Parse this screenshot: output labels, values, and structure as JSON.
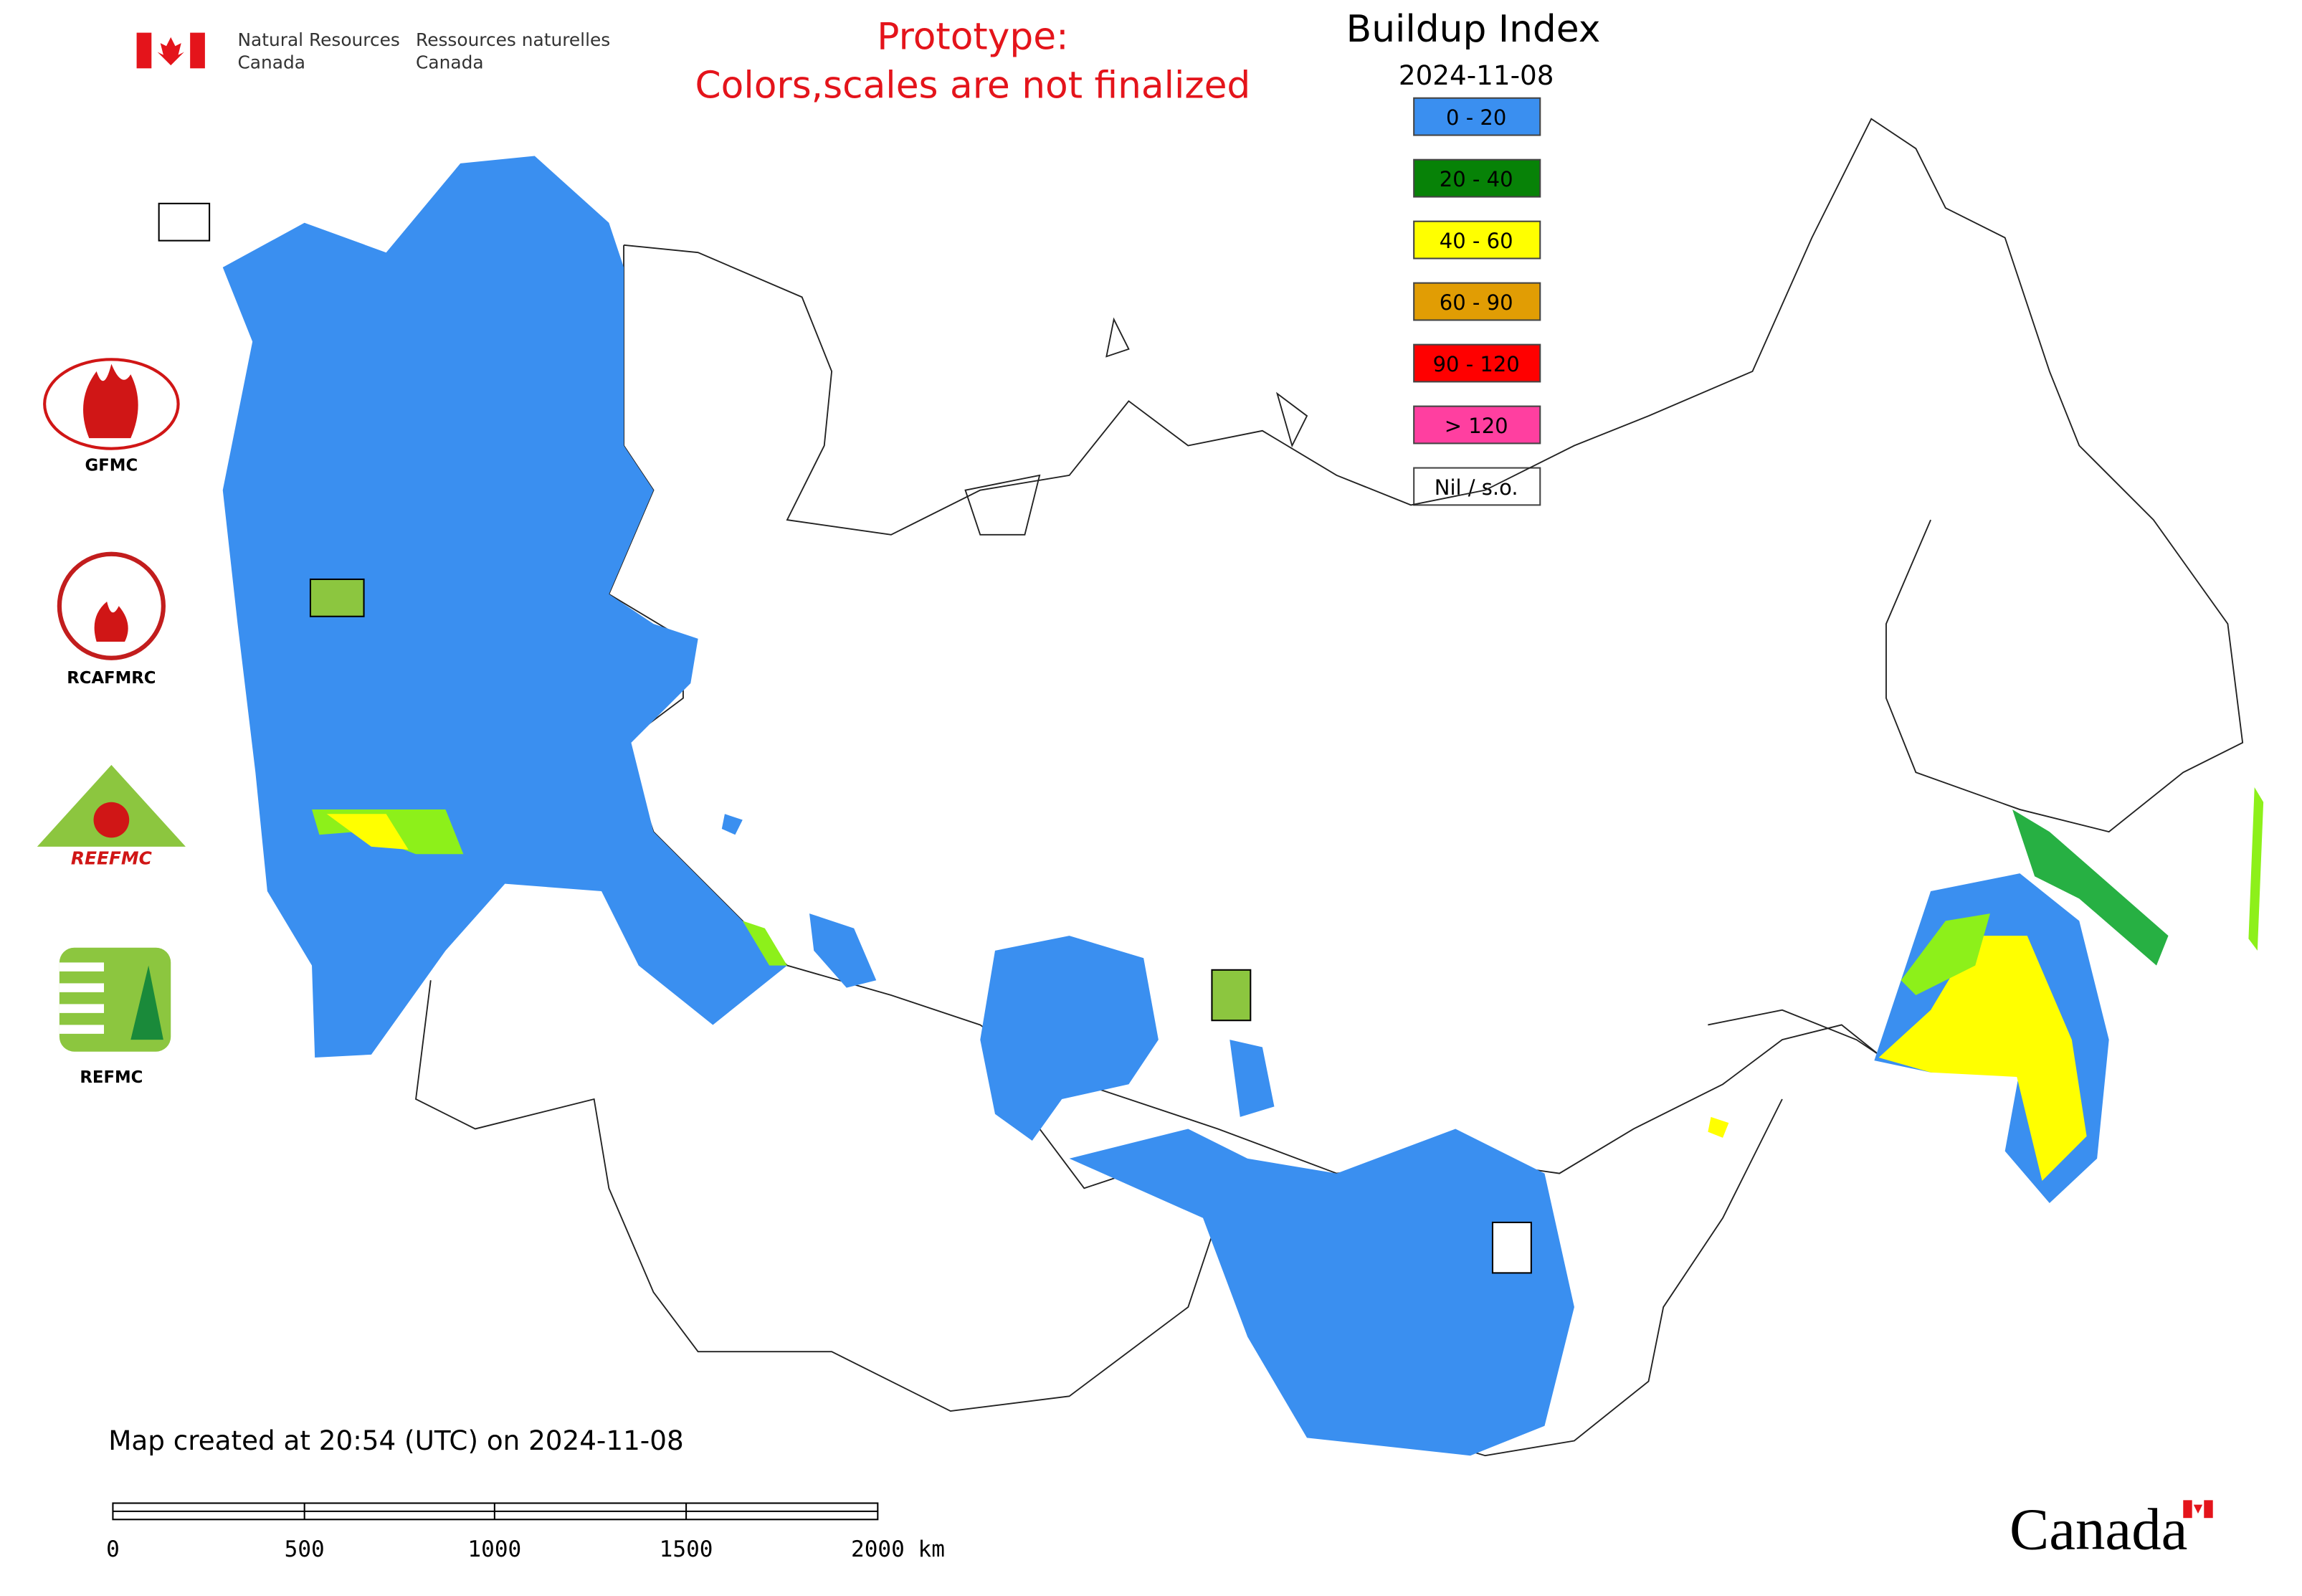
{
  "header": {
    "agency_en": [
      "Natural Resources",
      "Canada"
    ],
    "agency_fr": [
      "Ressources naturelles",
      "Canada"
    ]
  },
  "notice": [
    "Prototype:",
    "Colors,scales are not finalized"
  ],
  "title": "Buildup Index",
  "date": "2024-11-08",
  "legend": [
    {
      "label": "0 - 20",
      "color": "#3a8ff0"
    },
    {
      "label": "20 - 40",
      "color": "#078207"
    },
    {
      "label": "40 - 60",
      "color": "#ffff00"
    },
    {
      "label": "60 - 90",
      "color": "#e19d04"
    },
    {
      "label": "90 - 120",
      "color": "#ff0000"
    },
    {
      "label": "> 120",
      "color": "#ff3fa0"
    },
    {
      "label": "Nil / s.o.",
      "color": "#ffffff"
    }
  ],
  "logos": [
    "GFMC",
    "RCAFMRC",
    "REEFMC",
    "REFMC"
  ],
  "footer": "Map created at 20:54 (UTC) on 2024-11-08",
  "scale_bar": [
    "0",
    "500",
    "1000",
    "1500",
    "2000 km"
  ],
  "wordmark": "Canada"
}
